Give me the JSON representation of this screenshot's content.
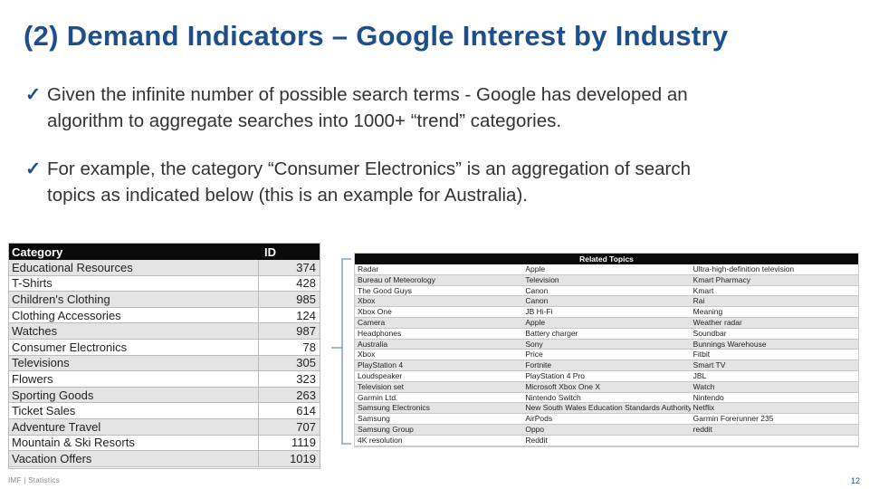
{
  "title": "(2) Demand Indicators – Google Interest by Industry",
  "bullets": [
    {
      "check": "✓",
      "line1": "Given the infinite number of possible search terms - Google has developed an",
      "line2": "algorithm to aggregate searches into 1000+ “trend” categories."
    },
    {
      "check": "✓",
      "line1": "For example, the category “Consumer Electronics” is an aggregation of search",
      "line2": "topics as indicated below (this is an example for Australia)."
    }
  ],
  "category_table": {
    "headers": [
      "Category",
      "ID"
    ],
    "rows": [
      [
        "Educational Resources",
        "374"
      ],
      [
        "T-Shirts",
        "428"
      ],
      [
        "Children's Clothing",
        "985"
      ],
      [
        "Clothing Accessories",
        "124"
      ],
      [
        "Watches",
        "987"
      ],
      [
        "Consumer Electronics",
        "78"
      ],
      [
        "Televisions",
        "305"
      ],
      [
        "Flowers",
        "323"
      ],
      [
        "Sporting Goods",
        "263"
      ],
      [
        "Ticket Sales",
        "614"
      ],
      [
        "Adventure Travel",
        "707"
      ],
      [
        "Mountain & Ski Resorts",
        "1119"
      ],
      [
        "Vacation Offers",
        "1019"
      ]
    ]
  },
  "related_topics": {
    "header": "Related Topics",
    "rows": [
      [
        "Radar",
        "Apple",
        "Ultra-high-definition television"
      ],
      [
        "Bureau of Meteorology",
        "Television",
        "Kmart Pharmacy"
      ],
      [
        "The Good Guys",
        "Canon",
        "Kmart"
      ],
      [
        "Xbox",
        "Canon",
        "Rai"
      ],
      [
        "Xbox One",
        "JB Hi-Fi",
        "Meaning"
      ],
      [
        "Camera",
        "Apple",
        "Weather radar"
      ],
      [
        "Headphones",
        "Battery charger",
        "Soundbar"
      ],
      [
        "Australia",
        "Sony",
        "Bunnings Warehouse"
      ],
      [
        "Xbox",
        "Price",
        "Fitbit"
      ],
      [
        "PlayStation 4",
        "Fortnite",
        "Smart TV"
      ],
      [
        "Loudspeaker",
        "PlayStation 4 Pro",
        "JBL"
      ],
      [
        "Television set",
        "Microsoft Xbox One X",
        "Watch"
      ],
      [
        "Garmin Ltd.",
        "Nintendo Switch",
        "Nintendo"
      ],
      [
        "Samsung Electronics",
        "New South Wales Education Standards Authority",
        "Netflix"
      ],
      [
        "Samsung",
        "AirPods",
        "Garmin Forerunner 235"
      ],
      [
        "Samsung Group",
        "Oppo",
        "reddit"
      ],
      [
        "4K resolution",
        "Reddit",
        ""
      ]
    ]
  },
  "footer": {
    "left": "IMF | Statistics",
    "page": "12"
  },
  "colors": {
    "title": "#1f4e8c",
    "header_bg": "#0a0a0a",
    "alt_row": "#e4e4e4"
  }
}
